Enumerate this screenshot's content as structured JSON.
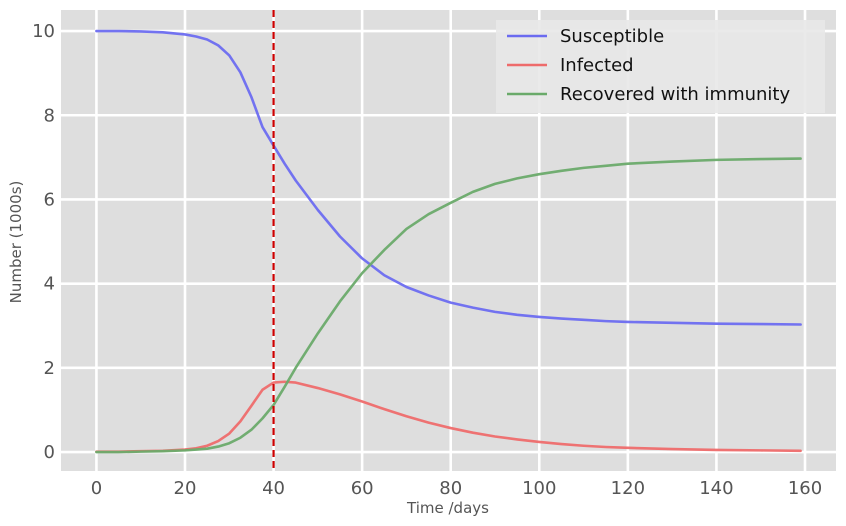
{
  "chart_data": {
    "type": "line",
    "title": "",
    "xlabel": "Time /days",
    "ylabel": "Number (1000s)",
    "xlim": [
      -8,
      167
    ],
    "ylim": [
      -0.45,
      10.5
    ],
    "xticks": [
      0,
      20,
      40,
      60,
      80,
      100,
      120,
      140,
      160
    ],
    "yticks": [
      0,
      2,
      4,
      6,
      8,
      10
    ],
    "grid": true,
    "legend_position": "top-right",
    "vline": {
      "x": 40,
      "color": "#cc0000",
      "style": "dashed"
    },
    "x": [
      0,
      5,
      10,
      15,
      20,
      22.5,
      25,
      27.5,
      30,
      32.5,
      35,
      37.5,
      40,
      42.5,
      45,
      50,
      55,
      60,
      65,
      70,
      75,
      80,
      85,
      90,
      95,
      100,
      105,
      110,
      115,
      120,
      130,
      140,
      150,
      159
    ],
    "series": [
      {
        "name": "Susceptible",
        "color": "#6b6bf0",
        "values": [
          10.0,
          10.0,
          9.99,
          9.97,
          9.92,
          9.87,
          9.8,
          9.66,
          9.42,
          9.02,
          8.43,
          7.72,
          7.28,
          6.85,
          6.45,
          5.75,
          5.12,
          4.6,
          4.2,
          3.92,
          3.72,
          3.55,
          3.43,
          3.33,
          3.26,
          3.21,
          3.17,
          3.14,
          3.11,
          3.09,
          3.07,
          3.05,
          3.04,
          3.03
        ]
      },
      {
        "name": "Infected",
        "color": "#ee6b6b",
        "values": [
          0.01,
          0.01,
          0.02,
          0.03,
          0.06,
          0.09,
          0.15,
          0.26,
          0.44,
          0.73,
          1.1,
          1.48,
          1.65,
          1.67,
          1.65,
          1.52,
          1.37,
          1.2,
          1.02,
          0.85,
          0.7,
          0.57,
          0.46,
          0.37,
          0.3,
          0.24,
          0.19,
          0.15,
          0.12,
          0.1,
          0.07,
          0.05,
          0.04,
          0.03
        ]
      },
      {
        "name": "Recovered with immunity",
        "color": "#6aaa6a",
        "values": [
          0.0,
          0.0,
          0.01,
          0.02,
          0.04,
          0.06,
          0.08,
          0.13,
          0.21,
          0.34,
          0.53,
          0.8,
          1.12,
          1.55,
          2.0,
          2.82,
          3.58,
          4.25,
          4.8,
          5.3,
          5.65,
          5.92,
          6.18,
          6.37,
          6.5,
          6.6,
          6.68,
          6.75,
          6.8,
          6.85,
          6.9,
          6.94,
          6.96,
          6.97
        ]
      }
    ]
  }
}
